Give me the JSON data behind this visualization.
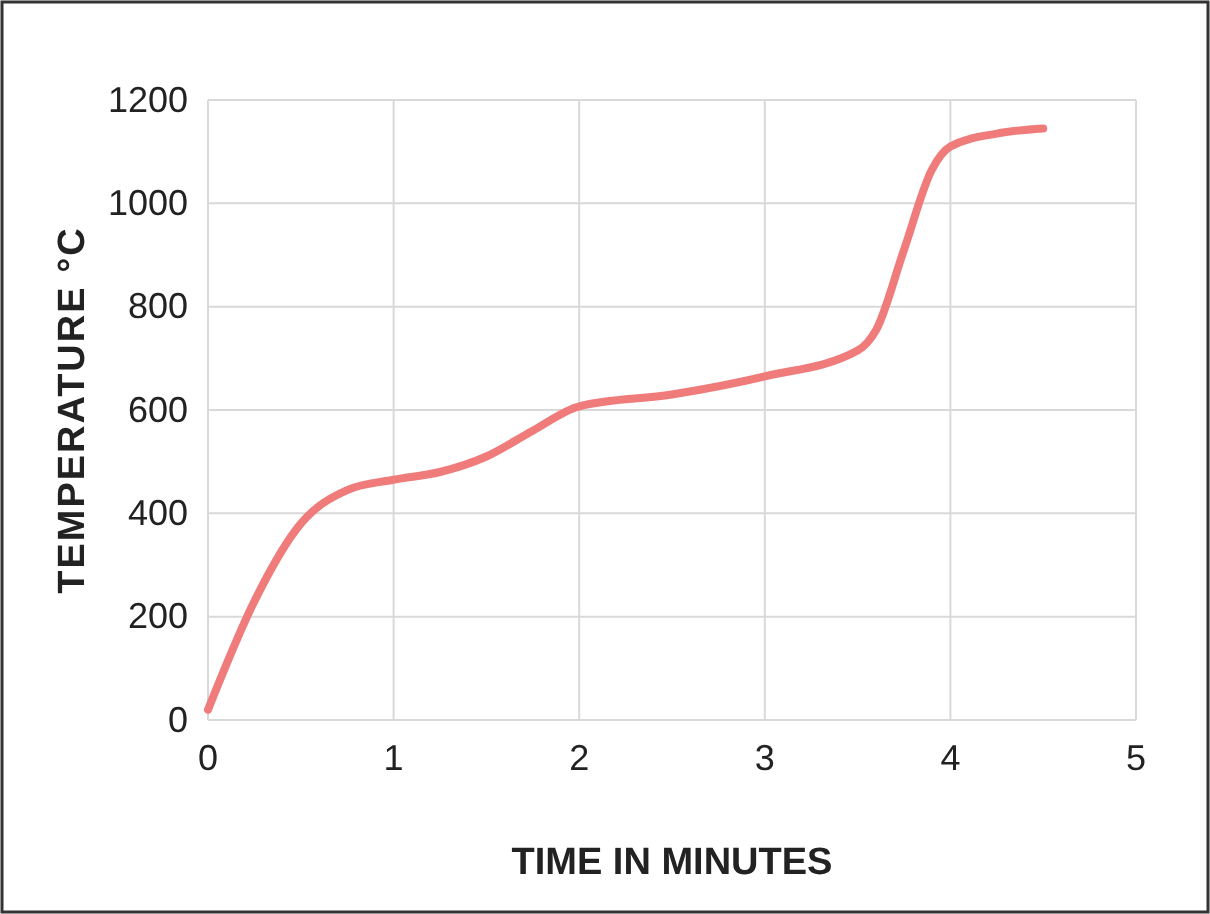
{
  "chart_data": {
    "type": "line",
    "xlabel": "TIME IN MINUTES",
    "ylabel": "TEMPERATURE °C",
    "x": [
      0,
      0.25,
      0.5,
      0.75,
      1,
      1.25,
      1.5,
      1.75,
      2,
      2.5,
      3,
      3.5,
      3.6,
      3.75,
      3.9,
      4,
      4.25,
      4.5
    ],
    "series": [
      {
        "color": "#ef7b7b",
        "values": [
          20,
          230,
          380,
          445,
          465,
          480,
          510,
          560,
          607,
          630,
          665,
          715,
          755,
          910,
          1065,
          1110,
          1135,
          1145
        ]
      }
    ],
    "xlim": [
      0,
      5
    ],
    "xticks": [
      0,
      1,
      2,
      3,
      4,
      5
    ],
    "ylim": [
      0,
      1200
    ],
    "yticks": [
      0,
      200,
      400,
      600,
      800,
      1000,
      1200
    ],
    "grid": true,
    "marker": "none",
    "line_style": "solid"
  }
}
